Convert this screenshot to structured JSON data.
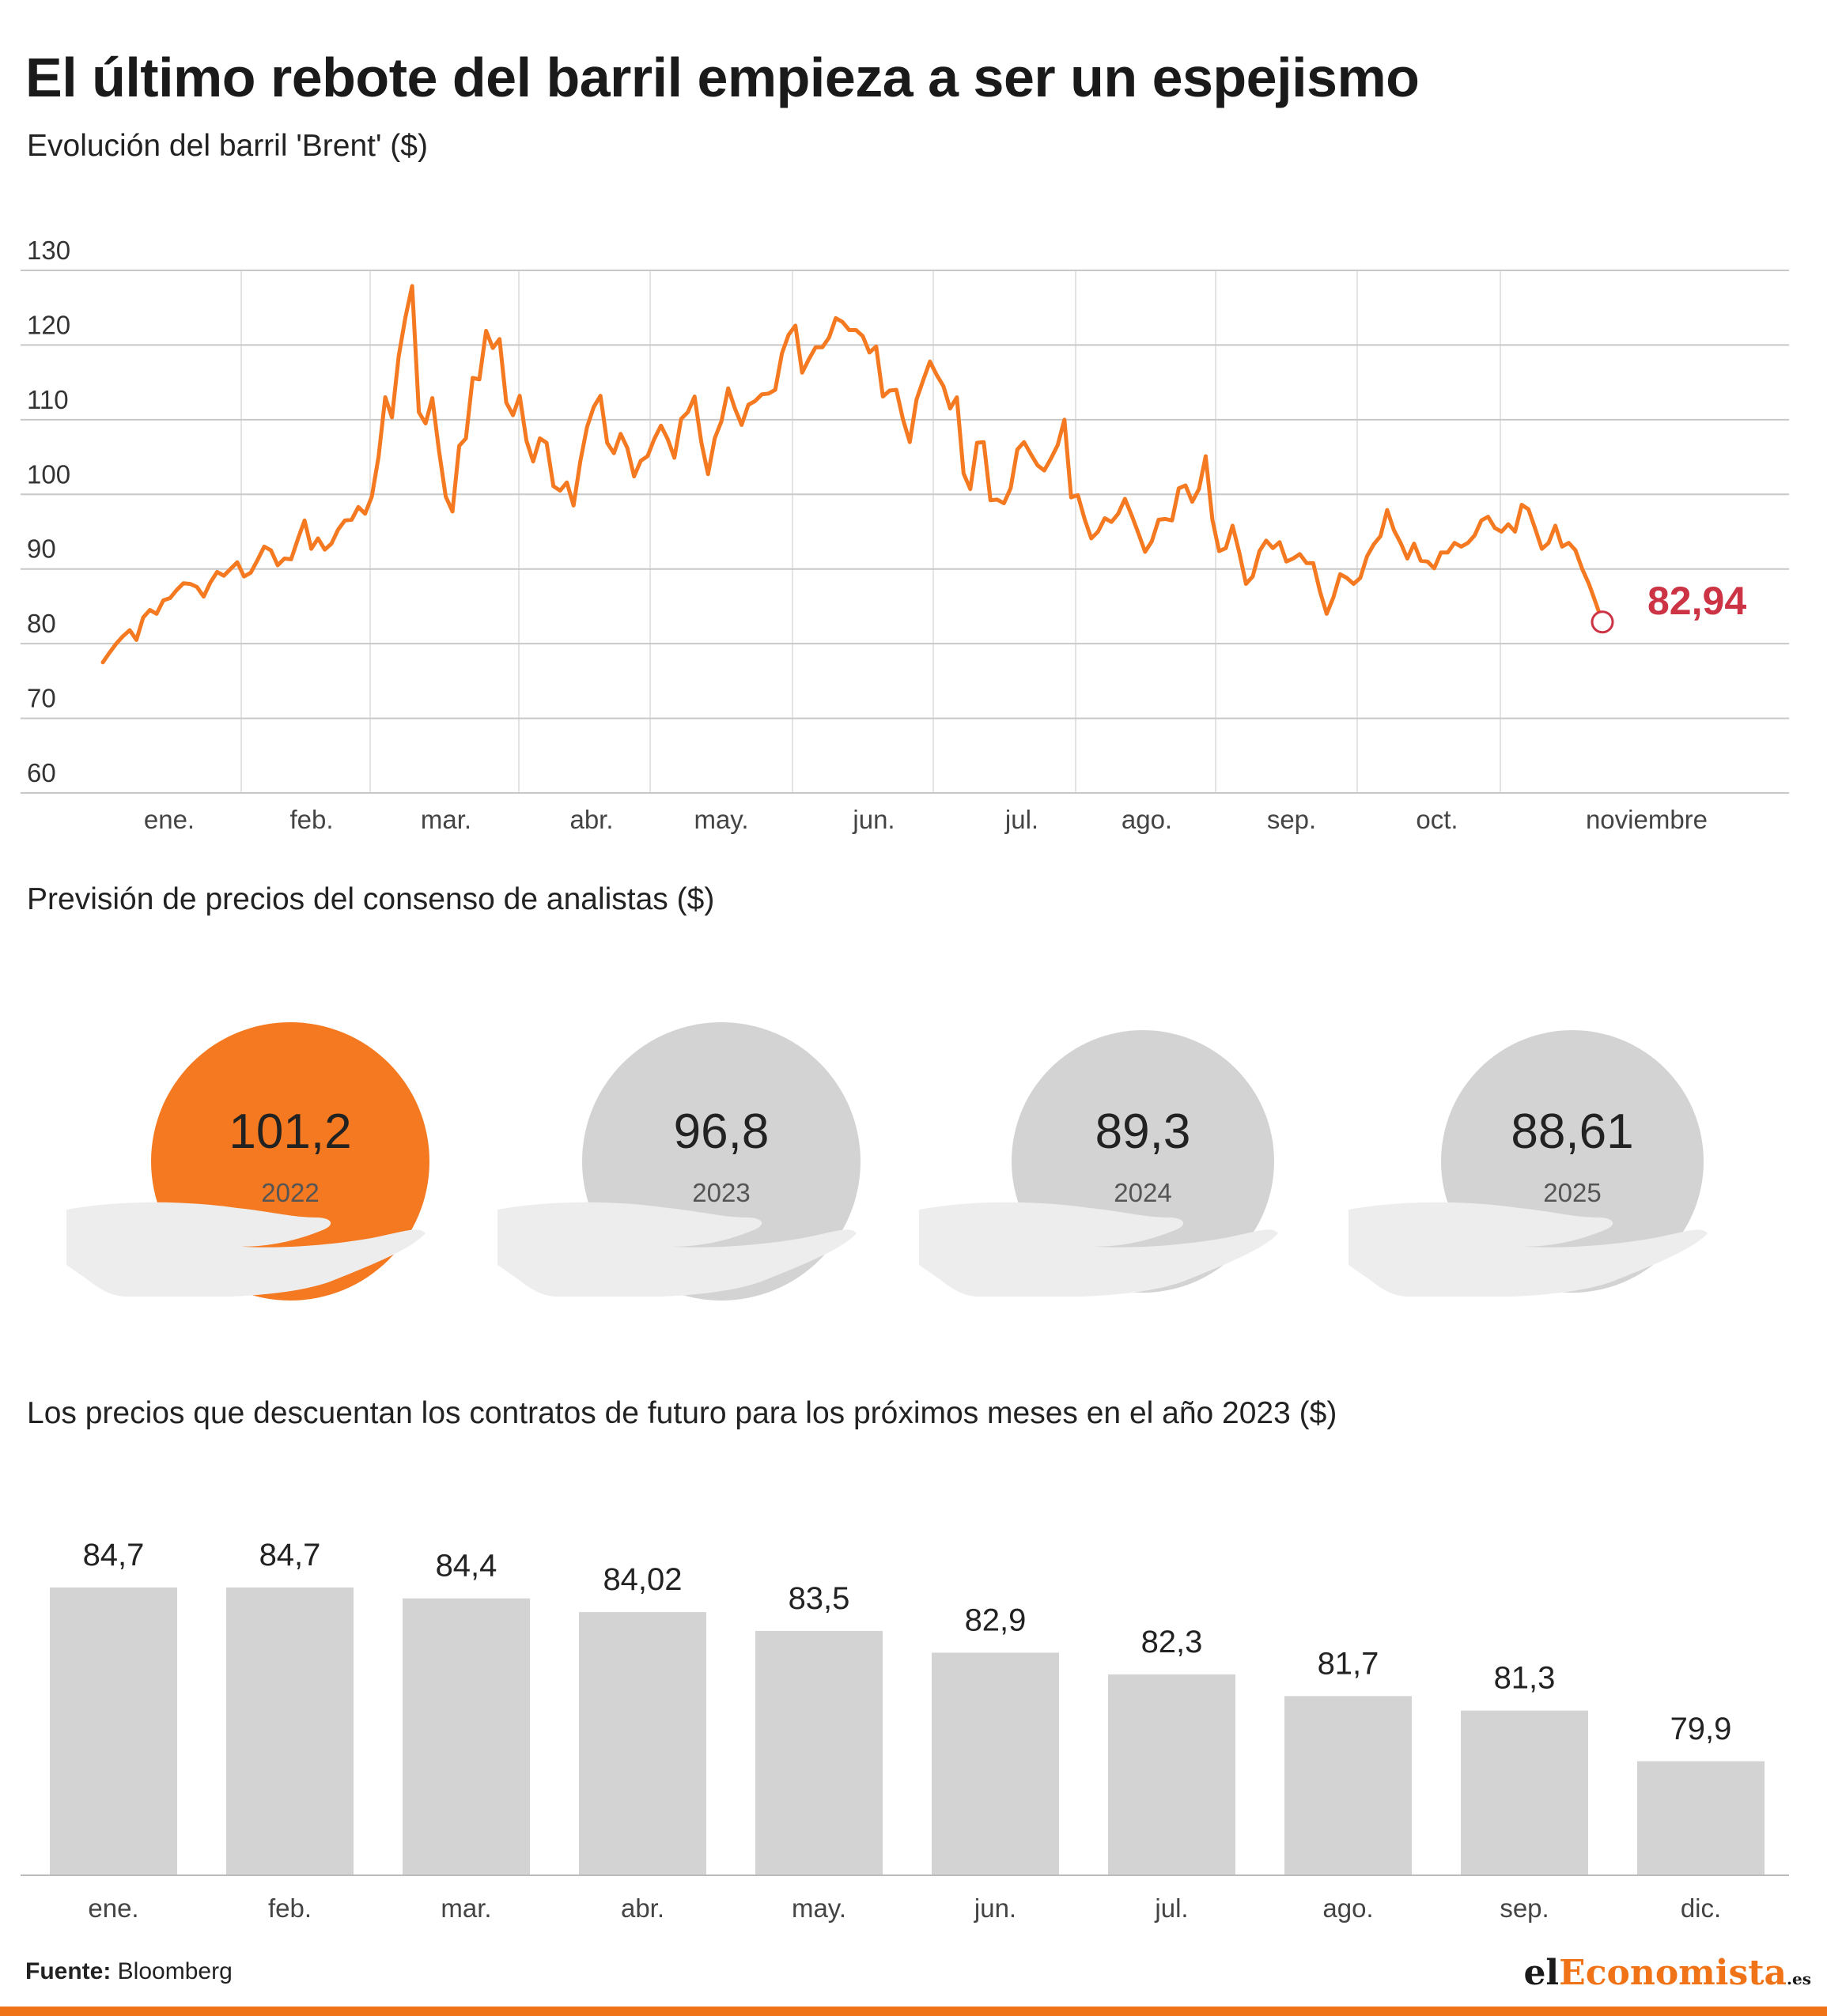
{
  "title": "El último rebote del barril empieza a ser un espejismo",
  "colors": {
    "accent": "#f47920",
    "highlight": "#cc3344",
    "bubble": "#d3d3d3",
    "hand": "#ededed",
    "bar": "#d3d3d3",
    "grid": "#c8c8c8"
  },
  "brent": {
    "subtitle": "Evolución del barril 'Brent' ($)",
    "last_value_label": "82,94",
    "y_ticks": [
      "130",
      "120",
      "110",
      "100",
      "90",
      "80",
      "70",
      "60"
    ],
    "months": [
      "ene.",
      "feb.",
      "mar.",
      "abr.",
      "may.",
      "jun.",
      "jul.",
      "ago.",
      "sep.",
      "oct.",
      "noviembre"
    ]
  },
  "forecast": {
    "subtitle": "Previsión de precios del consenso de analistas ($)",
    "items": [
      {
        "value": "101,2",
        "year": "2022",
        "highlight": true
      },
      {
        "value": "96,8",
        "year": "2023",
        "highlight": false
      },
      {
        "value": "89,3",
        "year": "2024",
        "highlight": false
      },
      {
        "value": "88,61",
        "year": "2025",
        "highlight": false
      }
    ]
  },
  "futures": {
    "subtitle": "Los precios que descuentan los contratos de futuro para los próximos meses en el año 2023 ($)",
    "labels": [
      "84,7",
      "84,7",
      "84,4",
      "84,02",
      "83,5",
      "82,9",
      "82,3",
      "81,7",
      "81,3",
      "79,9"
    ]
  },
  "footer": {
    "source_label": "Fuente:",
    "source": "Bloomberg",
    "logo_a": "el",
    "logo_b": "Economista",
    "logo_c": ".es"
  },
  "chart_data": [
    {
      "type": "line",
      "title": "Evolución del barril 'Brent' ($)",
      "ylim": [
        60,
        130
      ],
      "x_ticks": [
        "ene.",
        "feb.",
        "mar.",
        "abr.",
        "may.",
        "jun.",
        "jul.",
        "ago.",
        "sep.",
        "oct.",
        "noviembre"
      ],
      "grid": true,
      "series": [
        {
          "values": [
            77.5,
            78.8,
            80.0,
            81.0,
            81.8,
            80.5,
            83.5,
            84.5,
            84.0,
            85.8,
            86.1,
            87.2,
            88.1,
            88.0,
            87.6,
            86.3,
            88.2,
            89.6,
            89.1,
            90.0,
            90.9,
            89.0,
            89.5,
            91.2,
            93.0,
            92.5,
            90.5,
            91.4,
            91.3,
            94.0,
            96.5,
            92.7,
            94.1,
            92.6,
            93.4,
            95.3,
            96.5,
            96.6,
            98.3,
            97.4,
            99.7,
            105.0,
            113.0,
            110.3,
            118.5,
            123.7,
            127.9,
            111.0,
            109.5,
            112.9,
            105.8,
            99.7,
            97.7,
            106.5,
            107.5,
            115.6,
            115.4,
            121.9,
            119.6,
            120.8,
            112.3,
            110.6,
            113.2,
            107.2,
            104.4,
            107.5,
            106.9,
            101.1,
            100.5,
            101.6,
            98.5,
            104.4,
            109.0,
            111.7,
            113.2,
            106.9,
            105.5,
            108.1,
            106.2,
            102.4,
            104.5,
            105.1,
            107.4,
            109.2,
            107.4,
            104.9,
            110.1,
            111.0,
            113.1,
            107.0,
            102.7,
            107.5,
            109.8,
            114.2,
            111.5,
            109.3,
            112.0,
            112.5,
            113.4,
            113.5,
            114.0,
            118.9,
            121.4,
            122.6,
            116.3,
            118.1,
            119.7,
            119.7,
            121.0,
            123.6,
            123.1,
            122.0,
            122.0,
            121.2,
            119.0,
            119.8,
            113.1,
            113.9,
            114.0,
            110.0,
            107.0,
            112.7,
            115.3,
            117.8,
            116.0,
            114.5,
            111.5,
            113.0,
            102.8,
            100.7,
            106.9,
            107.0,
            99.2,
            99.3,
            98.8,
            100.8,
            106.0,
            107.0,
            105.4,
            103.9,
            103.2,
            104.8,
            106.6,
            110.0,
            99.6,
            99.9,
            96.7,
            94.1,
            95.0,
            96.8,
            96.3,
            97.4,
            99.4,
            97.2,
            94.8,
            92.3,
            93.7,
            96.6,
            96.7,
            96.5,
            100.8,
            101.2,
            99.0,
            100.7,
            105.1,
            96.6,
            92.4,
            92.8,
            95.8,
            92.2,
            88.0,
            89.0,
            92.4,
            93.8,
            92.8,
            93.6,
            91.0,
            91.4,
            92.0,
            90.8,
            90.8,
            87.0,
            84.0,
            86.2,
            89.3,
            88.8,
            88.0,
            88.8,
            91.7,
            93.3,
            94.4,
            97.9,
            95.2,
            93.5,
            91.4,
            93.4,
            91.1,
            91.0,
            90.1,
            92.2,
            92.2,
            93.5,
            93.0,
            93.5,
            94.5,
            96.5,
            97.0,
            95.5,
            95.0,
            96.0,
            95.0,
            98.6,
            98.0,
            95.4,
            92.7,
            93.5,
            95.8,
            93.0,
            93.5,
            92.5,
            90.0,
            88.0,
            85.5,
            82.9
          ]
        }
      ]
    },
    {
      "type": "bar",
      "title": "Previsión de precios del consenso de analistas ($)",
      "categories": [
        "2022",
        "2023",
        "2024",
        "2025"
      ],
      "values": [
        101.2,
        96.8,
        89.3,
        88.61
      ]
    },
    {
      "type": "bar",
      "title": "Los precios que descuentan los contratos de futuro para los próximos meses en el año 2023 ($)",
      "categories": [
        "ene.",
        "feb.",
        "mar.",
        "abr.",
        "may.",
        "jun.",
        "jul.",
        "ago.",
        "sep.",
        "dic."
      ],
      "values": [
        84.7,
        84.7,
        84.4,
        84.02,
        83.5,
        82.9,
        82.3,
        81.7,
        81.3,
        79.9
      ]
    }
  ]
}
